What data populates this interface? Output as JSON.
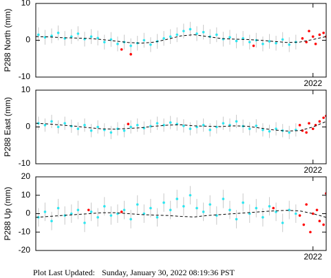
{
  "chart_data": [
    {
      "type": "scatter",
      "ylabel": "P288 North (mm)",
      "xlim": [
        2019.9,
        2022.1
      ],
      "xticks": [
        2022
      ],
      "ylim": [
        -10,
        10
      ],
      "yticks": [
        -10,
        0,
        10
      ],
      "series": [
        {
          "style": "markers",
          "color": "#2ee6f0",
          "error": 2,
          "x": [
            2019.92,
            2019.97,
            2020.02,
            2020.07,
            2020.12,
            2020.17,
            2020.22,
            2020.27,
            2020.32,
            2020.37,
            2020.42,
            2020.47,
            2020.52,
            2020.57,
            2020.62,
            2020.67,
            2020.72,
            2020.77,
            2020.82,
            2020.87,
            2020.92,
            2020.97,
            2021.02,
            2021.07,
            2021.12,
            2021.17,
            2021.22,
            2021.27,
            2021.32,
            2021.37,
            2021.42,
            2021.47,
            2021.52,
            2021.57,
            2021.62,
            2021.67,
            2021.72,
            2021.77,
            2021.82,
            2021.87
          ],
          "values": [
            1.5,
            0.8,
            1.2,
            2,
            0.5,
            1,
            1.8,
            0.3,
            1,
            0.6,
            -0.5,
            0.2,
            -1,
            -0.5,
            -1.5,
            -0.8,
            0,
            -1.2,
            -0.3,
            0.5,
            1,
            1.5,
            2.5,
            3,
            1.8,
            2.2,
            1,
            1.5,
            0.3,
            0.8,
            -0.2,
            0.5,
            -0.5,
            0,
            -1,
            -0.3,
            -0.8,
            0.2,
            -1.2,
            -0.5
          ]
        },
        {
          "style": "markers",
          "color": "#ff0000",
          "x": [
            2020.55,
            2020.62,
            2021.55,
            2021.92,
            2021.95,
            2021.97,
            2022.0,
            2022.02,
            2022.05,
            2022.08,
            2022.1,
            2022.12
          ],
          "values": [
            -2.5,
            -3.8,
            -1.5,
            0.5,
            -0.5,
            2.5,
            1,
            -1,
            1.5,
            2,
            1,
            1.5
          ]
        },
        {
          "style": "dashed-line",
          "color": "#000000",
          "x": [
            2019.9,
            2020.0,
            2020.1,
            2020.2,
            2020.3,
            2020.4,
            2020.5,
            2020.6,
            2020.7,
            2020.8,
            2020.9,
            2021.0,
            2021.1,
            2021.2,
            2021.3,
            2021.4,
            2021.5,
            2021.6,
            2021.7,
            2021.8,
            2021.9,
            2022.0,
            2022.1
          ],
          "values": [
            1,
            0.9,
            0.7,
            0.6,
            0.5,
            0.2,
            -0.2,
            -0.6,
            -0.8,
            -0.5,
            0.3,
            1.2,
            1.5,
            1.0,
            0.5,
            0.3,
            0.2,
            0,
            -0.3,
            -0.6,
            -0.5,
            0.2,
            1.0
          ]
        }
      ]
    },
    {
      "type": "scatter",
      "ylabel": "P288 East (mm)",
      "xlim": [
        2019.9,
        2022.1
      ],
      "xticks": [
        2022
      ],
      "ylim": [
        -10,
        10
      ],
      "yticks": [
        -10,
        0,
        10
      ],
      "series": [
        {
          "style": "markers",
          "color": "#2ee6f0",
          "error": 1.8,
          "x": [
            2019.92,
            2019.97,
            2020.02,
            2020.07,
            2020.12,
            2020.17,
            2020.22,
            2020.27,
            2020.32,
            2020.37,
            2020.42,
            2020.47,
            2020.52,
            2020.57,
            2020.62,
            2020.67,
            2020.72,
            2020.77,
            2020.82,
            2020.87,
            2020.92,
            2020.97,
            2021.02,
            2021.07,
            2021.12,
            2021.17,
            2021.22,
            2021.27,
            2021.32,
            2021.37,
            2021.42,
            2021.47,
            2021.52,
            2021.57,
            2021.62,
            2021.67,
            2021.72,
            2021.77,
            2021.82,
            2021.87
          ],
          "values": [
            1,
            0.5,
            1.5,
            0,
            1,
            0.2,
            -0.5,
            0.5,
            -1,
            0,
            -0.8,
            -1.5,
            -0.5,
            -1,
            0,
            0.5,
            -0.3,
            0.2,
            1,
            0.5,
            1.2,
            0.8,
            0.3,
            -0.5,
            0,
            0.5,
            -0.8,
            0,
            1,
            0.5,
            1.5,
            0.2,
            -0.5,
            0.3,
            -0.8,
            -1.2,
            -0.5,
            -1,
            -1.5,
            -0.8
          ]
        },
        {
          "style": "markers",
          "color": "#ff0000",
          "x": [
            2020.6,
            2021.9,
            2021.92,
            2021.95,
            2021.97,
            2022.0,
            2022.02,
            2022.05,
            2022.08,
            2022.1,
            2022.12
          ],
          "values": [
            0.8,
            0.5,
            -1,
            -1.5,
            1,
            -0.5,
            0.5,
            1.5,
            2.5,
            3,
            2.5
          ]
        },
        {
          "style": "dashed-line",
          "color": "#000000",
          "x": [
            2019.9,
            2020.0,
            2020.1,
            2020.2,
            2020.3,
            2020.4,
            2020.5,
            2020.6,
            2020.7,
            2020.8,
            2020.9,
            2021.0,
            2021.1,
            2021.2,
            2021.3,
            2021.4,
            2021.5,
            2021.6,
            2021.7,
            2021.8,
            2021.9,
            2022.0,
            2022.1
          ],
          "values": [
            1,
            0.8,
            0.5,
            0.2,
            -0.2,
            -0.5,
            -0.6,
            -0.4,
            -0.2,
            0.2,
            0.5,
            0.6,
            0.3,
            0.2,
            0.1,
            0.3,
            0.2,
            -0.3,
            -0.8,
            -1.1,
            -1.0,
            0,
            1.5
          ]
        }
      ]
    },
    {
      "type": "scatter",
      "ylabel": "P288 Up (mm)",
      "xlim": [
        2019.9,
        2022.1
      ],
      "xticks": [
        2022
      ],
      "ylim": [
        -20,
        20
      ],
      "yticks": [
        -20,
        -10,
        0,
        10,
        20
      ],
      "series": [
        {
          "style": "markers",
          "color": "#2ee6f0",
          "error": 5,
          "x": [
            2019.92,
            2019.97,
            2020.02,
            2020.07,
            2020.12,
            2020.17,
            2020.22,
            2020.27,
            2020.32,
            2020.37,
            2020.42,
            2020.47,
            2020.52,
            2020.57,
            2020.62,
            2020.67,
            2020.72,
            2020.77,
            2020.82,
            2020.87,
            2020.92,
            2020.97,
            2021.02,
            2021.07,
            2021.12,
            2021.17,
            2021.22,
            2021.27,
            2021.32,
            2021.37,
            2021.42,
            2021.47,
            2021.52,
            2021.57,
            2021.62,
            2021.67,
            2021.72,
            2021.77,
            2021.82,
            2021.87
          ],
          "values": [
            -2,
            1,
            -4,
            3,
            -1,
            0,
            2,
            -5,
            1,
            -2,
            4,
            -1,
            0,
            2,
            -3,
            5,
            0,
            3,
            -2,
            6,
            2,
            8,
            4,
            10,
            3,
            1,
            5,
            -1,
            8,
            2,
            -3,
            6,
            0,
            3,
            -2,
            4,
            1,
            -5,
            2,
            0
          ]
        },
        {
          "style": "markers",
          "color": "#ff0000",
          "x": [
            2020.3,
            2020.55,
            2021.7,
            2021.9,
            2021.93,
            2021.95,
            2021.98,
            2022.0,
            2022.03,
            2022.05,
            2022.08,
            2022.1,
            2022.12
          ],
          "values": [
            2,
            1,
            3,
            -1,
            -6,
            5,
            -10,
            0,
            2,
            -4,
            -6,
            11,
            -3
          ]
        },
        {
          "style": "dashed-line",
          "color": "#000000",
          "x": [
            2019.9,
            2020.0,
            2020.1,
            2020.2,
            2020.3,
            2020.4,
            2020.5,
            2020.6,
            2020.7,
            2020.8,
            2020.9,
            2021.0,
            2021.1,
            2021.2,
            2021.3,
            2021.4,
            2021.5,
            2021.6,
            2021.7,
            2021.8,
            2021.9,
            2022.0,
            2022.1
          ],
          "values": [
            -2,
            -1.5,
            -1,
            -0.5,
            0,
            0.5,
            0.5,
            0,
            -0.5,
            -0.8,
            -1,
            -1.5,
            -1.8,
            -1,
            -0.5,
            0,
            0.5,
            1,
            1.5,
            1.8,
            1.5,
            0,
            -2
          ]
        }
      ]
    }
  ],
  "footer": {
    "label": "Plot Last Updated:",
    "value": "Sunday, January 30, 2022 08:19:36 PST"
  }
}
